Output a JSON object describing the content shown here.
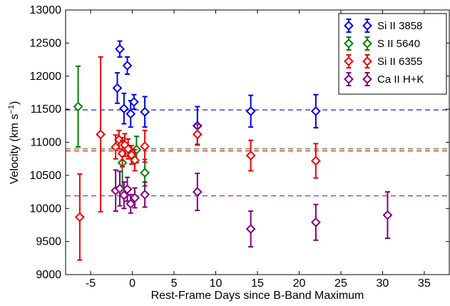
{
  "chart_data": {
    "type": "scatter",
    "title": "",
    "xlabel": "Rest-Frame Days since B-Band Maximum",
    "ylabel_main": "Velocity (km s",
    "ylabel_sup": "−1",
    "ylabel_close": ")",
    "xlim": [
      -8,
      38
    ],
    "ylim": [
      9000,
      13000
    ],
    "xticks": [
      -5,
      0,
      5,
      10,
      15,
      20,
      25,
      30,
      35
    ],
    "xtick_labels": [
      "-5",
      "0",
      "5",
      "10",
      "15",
      "20",
      "25",
      "30",
      "35"
    ],
    "yticks": [
      9000,
      9500,
      10000,
      10500,
      11000,
      11500,
      12000,
      12500,
      13000
    ],
    "ytick_labels": [
      "9000",
      "9500",
      "10000",
      "10500",
      "11000",
      "11500",
      "12000",
      "12500",
      "13000"
    ],
    "legend_position": "top-right",
    "series": [
      {
        "name": "Si II 3858",
        "color": "#0000ee",
        "mean": 11490,
        "points": [
          {
            "x": -1.8,
            "y": 11820,
            "err": 230
          },
          {
            "x": -1.5,
            "y": 12410,
            "err": 120
          },
          {
            "x": -1.0,
            "y": 11510,
            "err": 230
          },
          {
            "x": -0.6,
            "y": 12160,
            "err": 130
          },
          {
            "x": -0.2,
            "y": 11430,
            "err": 200
          },
          {
            "x": 0.2,
            "y": 11610,
            "err": 110
          },
          {
            "x": 1.5,
            "y": 11460,
            "err": 230
          },
          {
            "x": 7.8,
            "y": 11250,
            "err": 290
          },
          {
            "x": 14.2,
            "y": 11470,
            "err": 240
          },
          {
            "x": 22.0,
            "y": 11470,
            "err": 250
          }
        ]
      },
      {
        "name": "S II 5640",
        "color": "#008000",
        "mean": 10900,
        "points": [
          {
            "x": -6.5,
            "y": 11540,
            "err": 610
          },
          {
            "x": -1.2,
            "y": 10690,
            "err": 380
          },
          {
            "x": 0.5,
            "y": 10890,
            "err": 200
          },
          {
            "x": 1.5,
            "y": 10540,
            "err": 200
          }
        ]
      },
      {
        "name": "Si II 6355",
        "color": "#ee0000",
        "mean": 10870,
        "points": [
          {
            "x": -6.3,
            "y": 9870,
            "err": 650
          },
          {
            "x": -3.8,
            "y": 11120,
            "err": 1170
          },
          {
            "x": -2.0,
            "y": 10930,
            "err": 180
          },
          {
            "x": -1.6,
            "y": 11040,
            "err": 140
          },
          {
            "x": -1.2,
            "y": 10830,
            "err": 200
          },
          {
            "x": -0.9,
            "y": 10960,
            "err": 170
          },
          {
            "x": -0.5,
            "y": 10900,
            "err": 150
          },
          {
            "x": -0.1,
            "y": 10810,
            "err": 140
          },
          {
            "x": 0.3,
            "y": 10730,
            "err": 160
          },
          {
            "x": 1.5,
            "y": 10940,
            "err": 240
          },
          {
            "x": 7.8,
            "y": 11120,
            "err": 150
          },
          {
            "x": 14.2,
            "y": 10800,
            "err": 230
          },
          {
            "x": 22.0,
            "y": 10720,
            "err": 260
          }
        ]
      },
      {
        "name": "Ca II H+K",
        "color": "#800080",
        "mean": 10190,
        "points": [
          {
            "x": -2.0,
            "y": 10270,
            "err": 310
          },
          {
            "x": -1.5,
            "y": 10300,
            "err": 260
          },
          {
            "x": -1.0,
            "y": 10200,
            "err": 200
          },
          {
            "x": -0.6,
            "y": 10290,
            "err": 180
          },
          {
            "x": -0.2,
            "y": 10070,
            "err": 140
          },
          {
            "x": 0.3,
            "y": 10160,
            "err": 150
          },
          {
            "x": 1.5,
            "y": 10210,
            "err": 190
          },
          {
            "x": 7.8,
            "y": 10250,
            "err": 280
          },
          {
            "x": 14.2,
            "y": 9690,
            "err": 270
          },
          {
            "x": 22.0,
            "y": 9790,
            "err": 270
          },
          {
            "x": 30.6,
            "y": 9900,
            "err": 350
          }
        ]
      }
    ]
  }
}
